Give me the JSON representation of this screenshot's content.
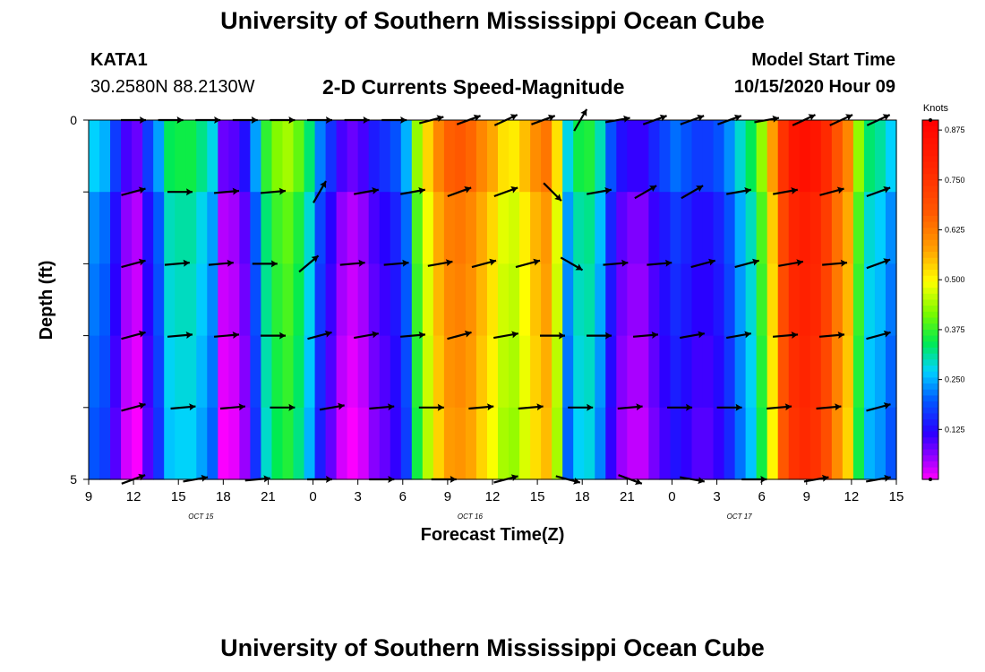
{
  "header": {
    "title": "University of Southern Mississippi Ocean Cube",
    "station_id": "KATA1",
    "station_coords": "30.2580N 88.2130W",
    "subtitle": "2-D Currents Speed-Magnitude",
    "model_label": "Model Start Time",
    "model_time": "10/15/2020 Hour 09"
  },
  "footer": {
    "title": "University of Southern Mississippi Ocean Cube"
  },
  "chart_data": {
    "type": "heatmap",
    "title": "2-D Currents Speed-Magnitude",
    "xlabel": "Forecast Time(Z)",
    "ylabel": "Depth (ft)",
    "x_hours_from_start": [
      0,
      54
    ],
    "x_tick_labels": [
      "9",
      "12",
      "15",
      "18",
      "21",
      "0",
      "3",
      "6",
      "9",
      "12",
      "15",
      "18",
      "21",
      "0",
      "3",
      "6",
      "9",
      "12",
      "15"
    ],
    "date_labels": [
      {
        "label": "OCT 15",
        "at_tick": 2.5
      },
      {
        "label": "OCT 16",
        "at_tick": 8.5
      },
      {
        "label": "OCT 17",
        "at_tick": 14.5
      }
    ],
    "y_tick_labels": [
      "0",
      "5"
    ],
    "ylim": [
      0,
      5
    ],
    "colorbar": {
      "title": "Knots",
      "range": [
        0,
        0.9
      ],
      "ticks": [
        "0.125",
        "0.250",
        "0.375",
        "0.500",
        "0.625",
        "0.750",
        "0.875"
      ]
    },
    "depth_levels": 5,
    "speed_by_column": [
      0.24,
      0.22,
      0.14,
      0.07,
      0.05,
      0.14,
      0.21,
      0.31,
      0.32,
      0.32,
      0.29,
      0.25,
      0.05,
      0.06,
      0.1,
      0.21,
      0.34,
      0.39,
      0.41,
      0.37,
      0.3,
      0.19,
      0.13,
      0.07,
      0.05,
      0.07,
      0.11,
      0.13,
      0.16,
      0.22,
      0.4,
      0.5,
      0.58,
      0.63,
      0.64,
      0.62,
      0.58,
      0.54,
      0.49,
      0.48,
      0.52,
      0.57,
      0.6,
      0.49,
      0.25,
      0.32,
      0.33,
      0.27,
      0.16,
      0.1,
      0.08,
      0.08,
      0.12,
      0.15,
      0.18,
      0.16,
      0.14,
      0.14,
      0.16,
      0.2,
      0.26,
      0.31,
      0.4,
      0.55,
      0.72,
      0.8,
      0.82,
      0.8,
      0.74,
      0.65,
      0.58,
      0.4,
      0.3,
      0.28,
      0.24
    ],
    "arrow_rows": [
      {
        "depth": 0,
        "angles": [
          0,
          0,
          0,
          0,
          0,
          0,
          0,
          0,
          15,
          20,
          25,
          20,
          60,
          10,
          20,
          20,
          20,
          10,
          25,
          25,
          25
        ]
      },
      {
        "depth": 1,
        "angles": [
          15,
          0,
          5,
          5,
          60,
          10,
          10,
          20,
          20,
          -45,
          10,
          30,
          30,
          10,
          10,
          15,
          20
        ]
      },
      {
        "depth": 2,
        "angles": [
          15,
          5,
          5,
          0,
          40,
          5,
          5,
          10,
          15,
          15,
          -30,
          5,
          5,
          15,
          15,
          10,
          5,
          20
        ]
      },
      {
        "depth": 3,
        "angles": [
          15,
          5,
          5,
          0,
          15,
          10,
          5,
          15,
          10,
          0,
          0,
          5,
          10,
          10,
          5,
          5,
          15
        ]
      },
      {
        "depth": 4,
        "angles": [
          15,
          5,
          5,
          0,
          10,
          5,
          0,
          5,
          5,
          0,
          5,
          0,
          0,
          5,
          5,
          15
        ]
      },
      {
        "depth": 5,
        "angles": [
          20,
          10,
          5,
          0,
          0,
          0,
          15,
          -15,
          -20,
          -10,
          0,
          10,
          10
        ]
      }
    ]
  }
}
